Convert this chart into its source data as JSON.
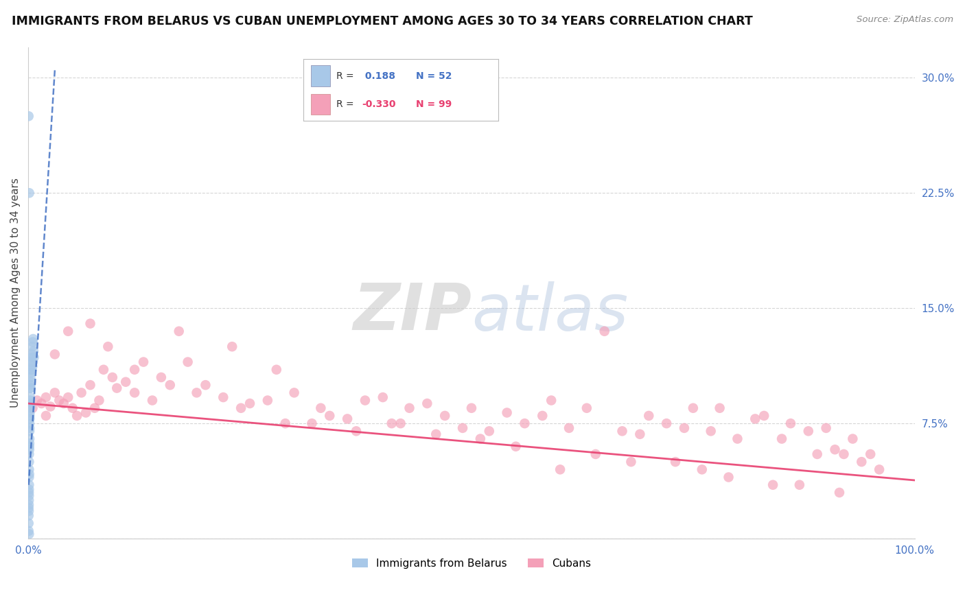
{
  "title": "IMMIGRANTS FROM BELARUS VS CUBAN UNEMPLOYMENT AMONG AGES 30 TO 34 YEARS CORRELATION CHART",
  "source": "Source: ZipAtlas.com",
  "ylabel": "Unemployment Among Ages 30 to 34 years",
  "xlim": [
    0.0,
    100.0
  ],
  "ylim": [
    0.0,
    32.0
  ],
  "yticks": [
    0.0,
    7.5,
    15.0,
    22.5,
    30.0
  ],
  "xticks": [
    0.0,
    100.0
  ],
  "xtick_labels": [
    "0.0%",
    "100.0%"
  ],
  "ytick_labels": [
    "",
    "7.5%",
    "15.0%",
    "22.5%",
    "30.0%"
  ],
  "legend_labels": [
    "Immigrants from Belarus",
    "Cubans"
  ],
  "blue_color": "#a8c8e8",
  "pink_color": "#f4a0b8",
  "blue_line_color": "#4472c4",
  "pink_line_color": "#e84070",
  "R_blue": 0.188,
  "N_blue": 52,
  "R_pink": -0.33,
  "N_pink": 99,
  "title_fontsize": 12.5,
  "axis_label_fontsize": 11,
  "tick_fontsize": 11,
  "watermark_zip": "ZIP",
  "watermark_atlas": "atlas",
  "blue_x": [
    0.05,
    0.05,
    0.05,
    0.05,
    0.05,
    0.07,
    0.07,
    0.08,
    0.08,
    0.09,
    0.09,
    0.1,
    0.1,
    0.1,
    0.1,
    0.1,
    0.12,
    0.12,
    0.13,
    0.14,
    0.15,
    0.15,
    0.15,
    0.16,
    0.16,
    0.18,
    0.18,
    0.18,
    0.2,
    0.2,
    0.22,
    0.22,
    0.24,
    0.25,
    0.26,
    0.28,
    0.3,
    0.3,
    0.32,
    0.35,
    0.4,
    0.4,
    0.42,
    0.45,
    0.48,
    0.5,
    0.52,
    0.55,
    0.6,
    0.65,
    0.12,
    0.1
  ],
  "blue_y": [
    27.5,
    0.5,
    1.0,
    1.5,
    2.0,
    1.8,
    2.2,
    2.5,
    3.0,
    3.2,
    2.8,
    3.5,
    4.0,
    4.5,
    5.0,
    5.5,
    4.2,
    6.0,
    5.8,
    6.2,
    6.5,
    7.0,
    7.5,
    7.2,
    8.0,
    7.8,
    8.2,
    8.8,
    8.5,
    9.0,
    9.2,
    9.8,
    8.6,
    10.0,
    10.5,
    9.8,
    10.2,
    11.0,
    10.8,
    11.5,
    11.0,
    12.0,
    11.8,
    12.5,
    11.2,
    12.8,
    11.5,
    13.0,
    12.2,
    11.8,
    22.5,
    0.3
  ],
  "pink_x": [
    0.5,
    1.0,
    1.5,
    2.0,
    2.5,
    3.0,
    3.5,
    4.0,
    4.5,
    5.0,
    5.5,
    6.0,
    6.5,
    7.0,
    7.5,
    8.0,
    8.5,
    9.5,
    10.0,
    11.0,
    12.0,
    13.0,
    14.0,
    15.0,
    17.0,
    19.0,
    20.0,
    22.0,
    23.0,
    25.0,
    27.0,
    28.0,
    30.0,
    32.0,
    34.0,
    36.0,
    38.0,
    40.0,
    41.0,
    43.0,
    45.0,
    47.0,
    49.0,
    50.0,
    52.0,
    54.0,
    56.0,
    58.0,
    59.0,
    61.0,
    63.0,
    65.0,
    67.0,
    69.0,
    70.0,
    72.0,
    74.0,
    75.0,
    77.0,
    78.0,
    80.0,
    82.0,
    83.0,
    85.0,
    86.0,
    88.0,
    89.0,
    90.0,
    91.0,
    92.0,
    93.0,
    94.0,
    95.0,
    2.0,
    3.0,
    4.5,
    7.0,
    9.0,
    12.0,
    16.0,
    18.0,
    24.0,
    29.0,
    33.0,
    37.0,
    42.0,
    46.0,
    51.0,
    55.0,
    60.0,
    64.0,
    68.0,
    73.0,
    76.0,
    79.0,
    84.0,
    87.0,
    91.5,
    96.0
  ],
  "pink_y": [
    8.5,
    9.0,
    8.8,
    9.2,
    8.6,
    9.5,
    9.0,
    8.8,
    9.2,
    8.5,
    8.0,
    9.5,
    8.2,
    10.0,
    8.5,
    9.0,
    11.0,
    10.5,
    9.8,
    10.2,
    9.5,
    11.5,
    9.0,
    10.5,
    13.5,
    9.5,
    10.0,
    9.2,
    12.5,
    8.8,
    9.0,
    11.0,
    9.5,
    7.5,
    8.0,
    7.8,
    9.0,
    9.2,
    7.5,
    8.5,
    8.8,
    8.0,
    7.2,
    8.5,
    7.0,
    8.2,
    7.5,
    8.0,
    9.0,
    7.2,
    8.5,
    13.5,
    7.0,
    6.8,
    8.0,
    7.5,
    7.2,
    8.5,
    7.0,
    8.5,
    6.5,
    7.8,
    8.0,
    6.5,
    7.5,
    7.0,
    5.5,
    7.2,
    5.8,
    5.5,
    6.5,
    5.0,
    5.5,
    8.0,
    12.0,
    13.5,
    14.0,
    12.5,
    11.0,
    10.0,
    11.5,
    8.5,
    7.5,
    8.5,
    7.0,
    7.5,
    6.8,
    6.5,
    6.0,
    4.5,
    5.5,
    5.0,
    5.0,
    4.5,
    4.0,
    3.5,
    3.5,
    3.0,
    4.5
  ],
  "blue_line_x": [
    0.05,
    3.0
  ],
  "blue_line_y": [
    3.5,
    30.5
  ],
  "pink_line_x": [
    0.0,
    100.0
  ],
  "pink_line_y": [
    8.8,
    3.8
  ]
}
